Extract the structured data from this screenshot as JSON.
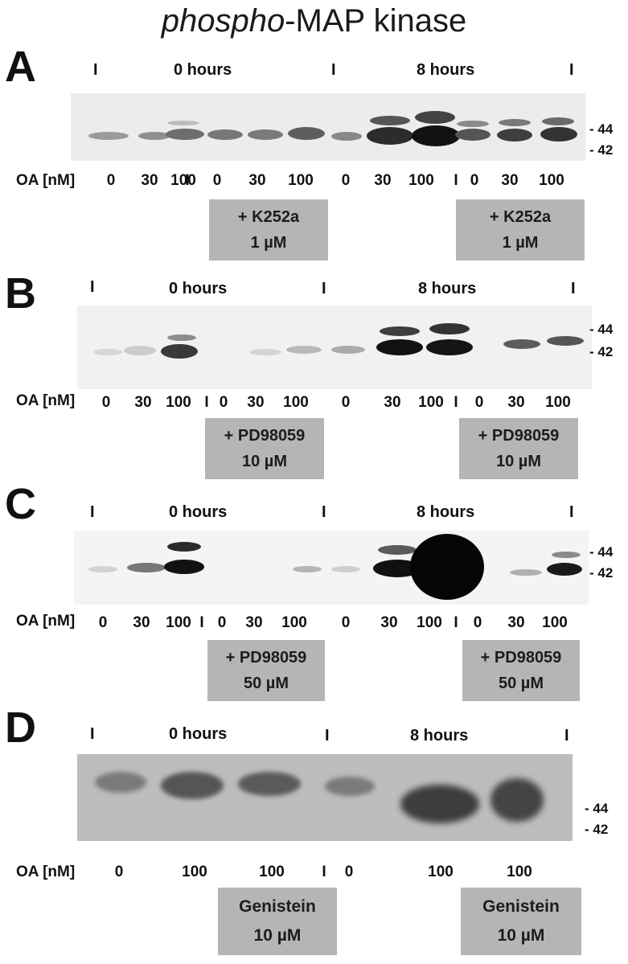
{
  "figure": {
    "title_italic": "phospho",
    "title_rest": "-MAP kinase"
  },
  "common": {
    "oa_label": "OA [nM]",
    "sep": "I",
    "head_0": "0 hours",
    "head_8": "8 hours",
    "mw_44": "- 44",
    "mw_42": "- 42"
  },
  "panels": {
    "A": {
      "label": "A",
      "lanes": [
        "0",
        "30",
        "100",
        "I",
        "0",
        "30",
        "100",
        "0",
        "30",
        "100",
        "I",
        "0",
        "30",
        "100"
      ],
      "box1": {
        "line1": "+ K252a",
        "line2": "1 µM"
      },
      "box2": {
        "line1": "+ K252a",
        "line2": "1 µM"
      }
    },
    "B": {
      "label": "B",
      "lanes": [
        "0",
        "30",
        "100",
        "I",
        "0",
        "30",
        "100",
        "0",
        "30",
        "100",
        "I",
        "0",
        "30",
        "100"
      ],
      "box1": {
        "line1": "+ PD98059",
        "line2": "10 µM"
      },
      "box2": {
        "line1": "+ PD98059",
        "line2": "10 µM"
      }
    },
    "C": {
      "label": "C",
      "lanes": [
        "0",
        "30",
        "100",
        "I",
        "0",
        "30",
        "100",
        "0",
        "30",
        "100",
        "I",
        "0",
        "30",
        "100"
      ],
      "box1": {
        "line1": "+ PD98059",
        "line2": "50 µM"
      },
      "box2": {
        "line1": "+ PD98059",
        "line2": "50 µM"
      }
    },
    "D": {
      "label": "D",
      "lanes": [
        "0",
        "100",
        "100",
        "I",
        "0",
        "100",
        "100"
      ],
      "box1": {
        "line1": "Genistein",
        "line2": "10 µM"
      },
      "box2": {
        "line1": "Genistein",
        "line2": "10 µM"
      }
    }
  }
}
